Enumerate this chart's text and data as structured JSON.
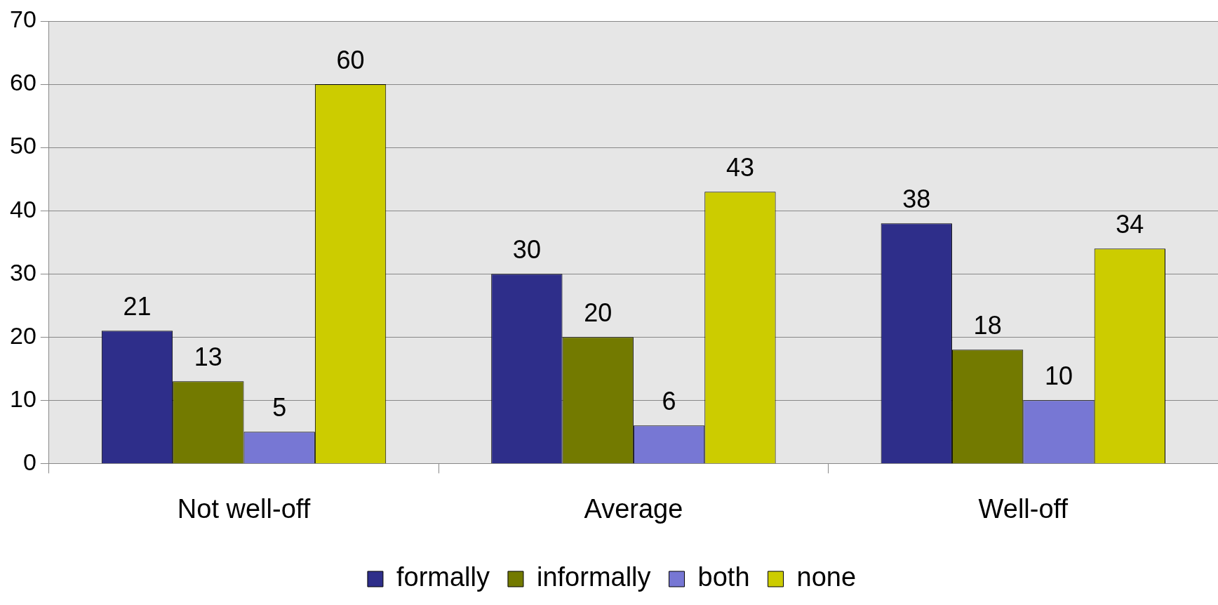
{
  "chart_data": {
    "type": "bar",
    "categories": [
      "Not well-off",
      "Average",
      "Well-off"
    ],
    "series": [
      {
        "name": "formally",
        "color": "#2e2e8a",
        "values": [
          21,
          30,
          38
        ]
      },
      {
        "name": "informally",
        "color": "#737a00",
        "values": [
          13,
          20,
          18
        ]
      },
      {
        "name": "both",
        "color": "#7777d4",
        "values": [
          5,
          6,
          10
        ]
      },
      {
        "name": "none",
        "color": "#cccc00",
        "values": [
          60,
          43,
          34
        ]
      }
    ],
    "ylim": [
      0,
      70
    ],
    "yticks": [
      0,
      10,
      20,
      30,
      40,
      50,
      60,
      70
    ],
    "grid": "y",
    "legend": "bottom",
    "data_labels": true
  }
}
